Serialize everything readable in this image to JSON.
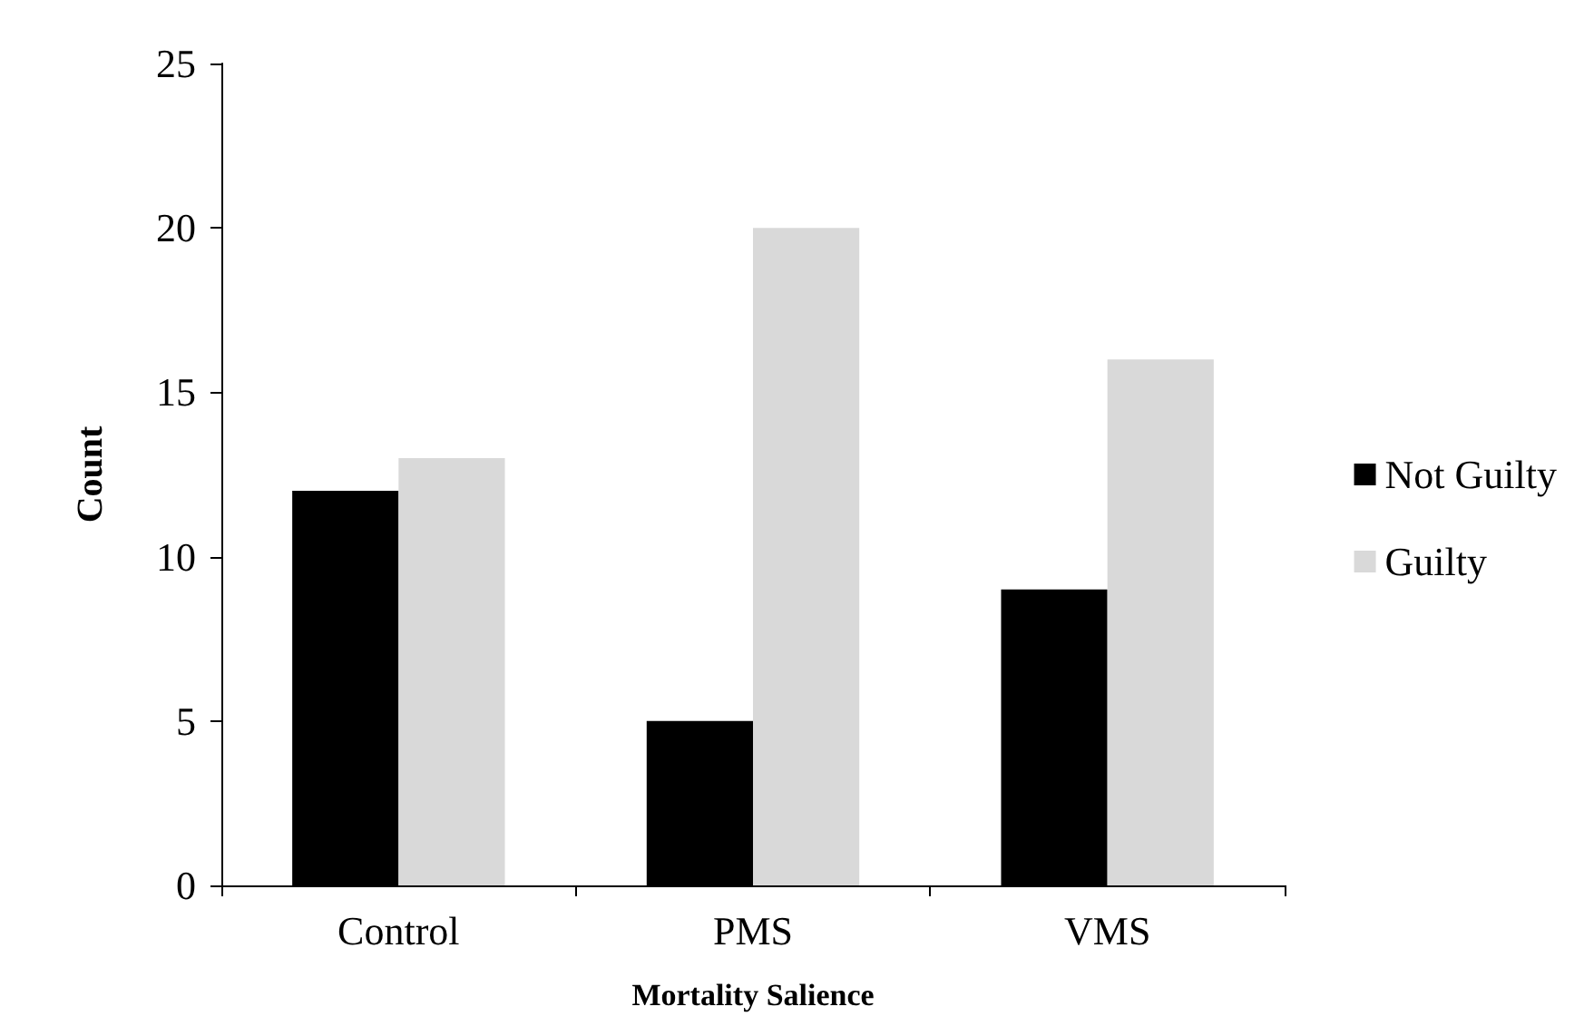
{
  "chart_data": {
    "type": "bar",
    "xlabel": "Mortality Salience",
    "ylabel": "Count",
    "categories": [
      "Control",
      "PMS",
      "VMS"
    ],
    "series": [
      {
        "name": "Not Guilty",
        "color": "#000000",
        "values": [
          12,
          5,
          9
        ]
      },
      {
        "name": "Guilty",
        "color": "#d9d9d9",
        "values": [
          13,
          20,
          16
        ]
      }
    ],
    "ylim": [
      0,
      25
    ],
    "yticks": [
      0,
      5,
      10,
      15,
      20,
      25
    ],
    "grid": false,
    "legend": "right"
  }
}
